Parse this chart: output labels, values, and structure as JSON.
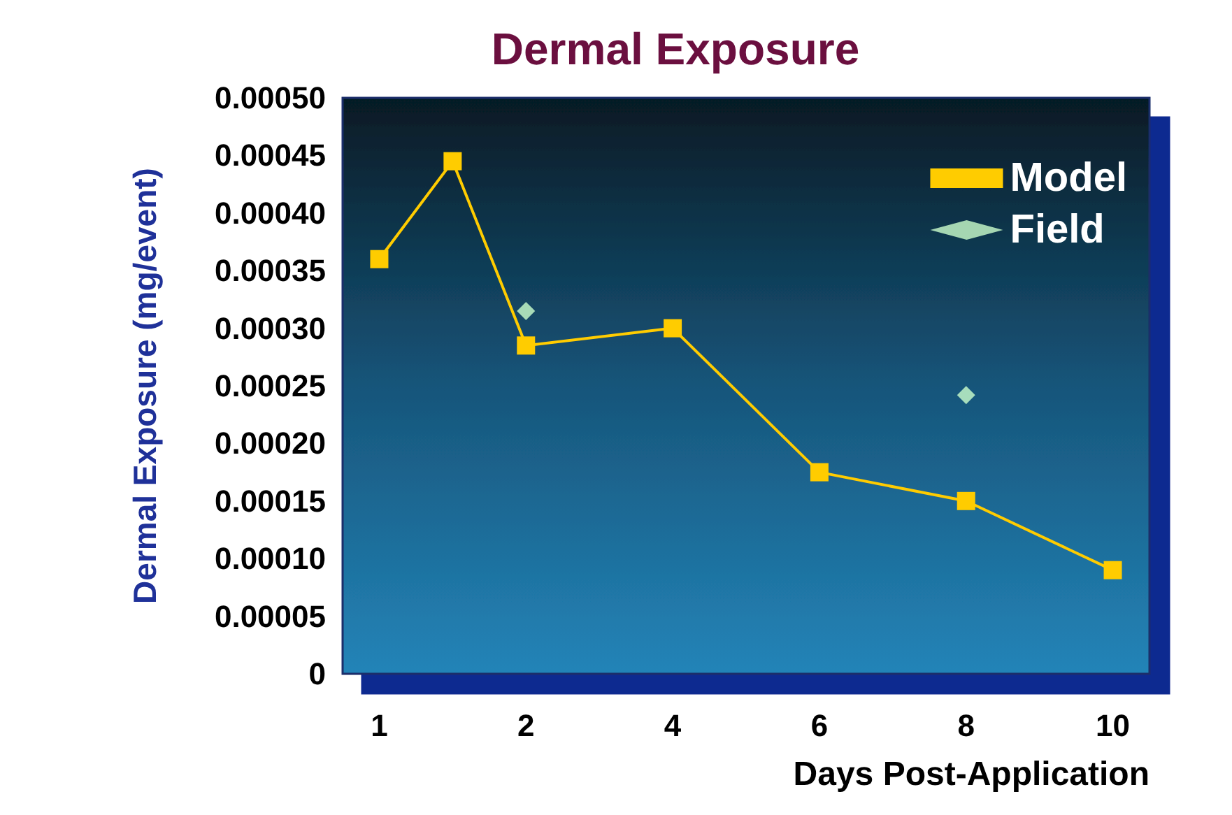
{
  "chart_data": {
    "type": "line",
    "title": "Dermal Exposure",
    "xlabel": "Days Post-Application",
    "ylabel": "Dermal Exposure (mg/event)",
    "categories": [
      "1",
      null,
      "2",
      null,
      "4",
      null,
      "6",
      null,
      "8",
      null,
      "10"
    ],
    "series": [
      {
        "name": "Model",
        "color": "#ffcc00",
        "marker": "square",
        "values": [
          0.00036,
          0.000445,
          0.000285,
          null,
          0.0003,
          null,
          0.000175,
          null,
          0.00015,
          null,
          9e-05
        ]
      },
      {
        "name": "Field",
        "color": "#ccffcc",
        "marker": "diamond",
        "type": "scatter",
        "values": [
          null,
          null,
          0.000315,
          null,
          null,
          null,
          null,
          null,
          0.000242,
          null,
          null
        ]
      }
    ],
    "ylim": [
      0,
      0.0005
    ],
    "yticks": [
      0,
      {
        "value": 5e-05,
        "label": "0.00005"
      },
      {
        "value": 0.0001,
        "label": "0.00010"
      },
      {
        "value": 0.00015,
        "label": "0.00015"
      },
      {
        "value": 0.0002,
        "label": "0.00020"
      },
      {
        "value": 0.00025,
        "label": "0.00025"
      },
      {
        "value": 0.0003,
        "label": "0.00030"
      },
      {
        "value": 0.00035,
        "label": "0.00035"
      },
      {
        "value": 0.0004,
        "label": "0.00040"
      },
      {
        "value": 0.00045,
        "label": "0.00045"
      },
      {
        "value": 0.0005,
        "label": "0.00050"
      }
    ],
    "grid": false,
    "legend": "top right"
  }
}
